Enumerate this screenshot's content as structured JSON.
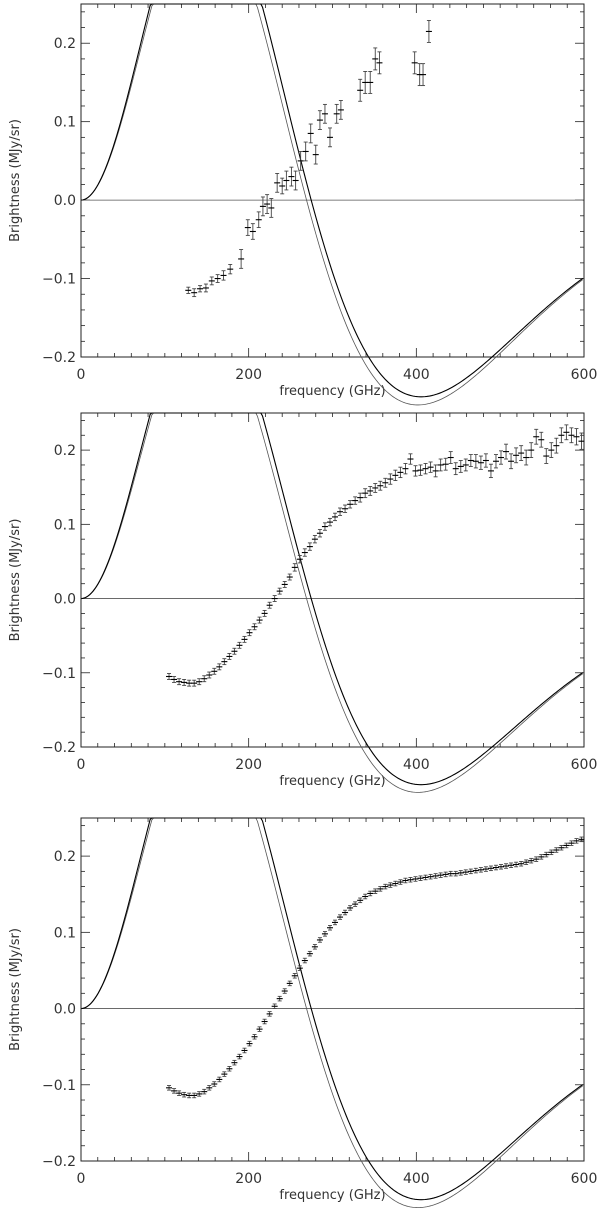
{
  "colors": {
    "curve": "#000000",
    "component": "#555555",
    "errorbar": "#444444",
    "frame": "#222222",
    "text": "#333333"
  },
  "chart_data": [
    {
      "type": "scatter",
      "xlabel": "frequency (GHz)",
      "ylabel": "Brightness (MJy/sr)",
      "xlim": [
        0,
        600
      ],
      "ylim": [
        -0.2,
        0.25
      ],
      "xticks": [
        "0",
        "200",
        "400",
        "600"
      ],
      "yticks": [
        "−0.2",
        "−0.1",
        "0.0",
        "0.1",
        "0.2"
      ],
      "grid": false,
      "series": [
        {
          "values": [
            [
              128,
              -0.115,
              0.004
            ],
            [
              135,
              -0.118,
              0.005
            ],
            [
              142,
              -0.113,
              0.004
            ],
            [
              149,
              -0.112,
              0.005
            ],
            [
              156,
              -0.103,
              0.005
            ],
            [
              163,
              -0.1,
              0.005
            ],
            [
              170,
              -0.096,
              0.006
            ],
            [
              178,
              -0.088,
              0.006
            ],
            [
              191,
              -0.075,
              0.012
            ],
            [
              199,
              -0.035,
              0.01
            ],
            [
              205,
              -0.04,
              0.01
            ],
            [
              212,
              -0.025,
              0.01
            ],
            [
              217,
              -0.008,
              0.012
            ],
            [
              222,
              -0.005,
              0.012
            ],
            [
              227,
              -0.01,
              0.012
            ],
            [
              234,
              0.022,
              0.012
            ],
            [
              240,
              0.018,
              0.01
            ],
            [
              245,
              0.025,
              0.012
            ],
            [
              251,
              0.03,
              0.012
            ],
            [
              256,
              0.025,
              0.012
            ],
            [
              262,
              0.05,
              0.012
            ],
            [
              268,
              0.062,
              0.012
            ],
            [
              274,
              0.085,
              0.012
            ],
            [
              280,
              0.058,
              0.012
            ],
            [
              285,
              0.102,
              0.012
            ],
            [
              291,
              0.11,
              0.012
            ],
            [
              297,
              0.08,
              0.012
            ],
            [
              305,
              0.11,
              0.012
            ],
            [
              310,
              0.115,
              0.012
            ],
            [
              333,
              0.14,
              0.014
            ],
            [
              339,
              0.15,
              0.014
            ],
            [
              345,
              0.15,
              0.014
            ],
            [
              351,
              0.18,
              0.014
            ],
            [
              356,
              0.175,
              0.014
            ],
            [
              398,
              0.175,
              0.014
            ],
            [
              404,
              0.16,
              0.014
            ],
            [
              408,
              0.16,
              0.014
            ],
            [
              415,
              0.215,
              0.014
            ]
          ]
        }
      ]
    },
    {
      "type": "scatter",
      "xlabel": "frequency (GHz)",
      "ylabel": "Brightness (MJy/sr)",
      "xlim": [
        0,
        600
      ],
      "ylim": [
        -0.2,
        0.25
      ],
      "xticks": [
        "0",
        "200",
        "400",
        "600"
      ],
      "yticks": [
        "−0.2",
        "−0.1",
        "0.0",
        "0.1",
        "0.2"
      ],
      "grid": false,
      "series": [
        {
          "values": [
            [
              105,
              -0.105,
              0.004
            ],
            [
              111,
              -0.109,
              0.004
            ],
            [
              117,
              -0.112,
              0.004
            ],
            [
              123,
              -0.113,
              0.004
            ],
            [
              129,
              -0.114,
              0.004
            ],
            [
              135,
              -0.114,
              0.004
            ],
            [
              141,
              -0.112,
              0.004
            ],
            [
              147,
              -0.108,
              0.004
            ],
            [
              153,
              -0.103,
              0.004
            ],
            [
              159,
              -0.098,
              0.004
            ],
            [
              165,
              -0.092,
              0.004
            ],
            [
              171,
              -0.085,
              0.004
            ],
            [
              177,
              -0.078,
              0.004
            ],
            [
              183,
              -0.071,
              0.004
            ],
            [
              189,
              -0.063,
              0.004
            ],
            [
              195,
              -0.055,
              0.004
            ],
            [
              201,
              -0.046,
              0.004
            ],
            [
              207,
              -0.038,
              0.004
            ],
            [
              213,
              -0.029,
              0.004
            ],
            [
              219,
              -0.02,
              0.004
            ],
            [
              225,
              -0.009,
              0.004
            ],
            [
              231,
              0.0,
              0.004
            ],
            [
              237,
              0.01,
              0.004
            ],
            [
              243,
              0.019,
              0.004
            ],
            [
              249,
              0.029,
              0.004
            ],
            [
              255,
              0.042,
              0.005
            ],
            [
              261,
              0.053,
              0.005
            ],
            [
              267,
              0.062,
              0.005
            ],
            [
              273,
              0.07,
              0.005
            ],
            [
              279,
              0.08,
              0.005
            ],
            [
              285,
              0.088,
              0.005
            ],
            [
              291,
              0.097,
              0.005
            ],
            [
              297,
              0.103,
              0.005
            ],
            [
              303,
              0.11,
              0.005
            ],
            [
              309,
              0.117,
              0.005
            ],
            [
              315,
              0.121,
              0.005
            ],
            [
              321,
              0.127,
              0.005
            ],
            [
              327,
              0.132,
              0.005
            ],
            [
              333,
              0.136,
              0.006
            ],
            [
              339,
              0.142,
              0.006
            ],
            [
              345,
              0.145,
              0.006
            ],
            [
              351,
              0.149,
              0.006
            ],
            [
              357,
              0.152,
              0.006
            ],
            [
              363,
              0.156,
              0.006
            ],
            [
              369,
              0.161,
              0.007
            ],
            [
              375,
              0.166,
              0.007
            ],
            [
              381,
              0.17,
              0.007
            ],
            [
              387,
              0.175,
              0.007
            ],
            [
              393,
              0.188,
              0.007
            ],
            [
              399,
              0.172,
              0.007
            ],
            [
              405,
              0.173,
              0.007
            ],
            [
              411,
              0.175,
              0.007
            ],
            [
              417,
              0.177,
              0.007
            ],
            [
              423,
              0.172,
              0.008
            ],
            [
              429,
              0.18,
              0.008
            ],
            [
              435,
              0.181,
              0.008
            ],
            [
              441,
              0.19,
              0.008
            ],
            [
              447,
              0.175,
              0.008
            ],
            [
              453,
              0.178,
              0.008
            ],
            [
              459,
              0.18,
              0.008
            ],
            [
              465,
              0.186,
              0.008
            ],
            [
              471,
              0.185,
              0.009
            ],
            [
              477,
              0.183,
              0.009
            ],
            [
              483,
              0.186,
              0.009
            ],
            [
              489,
              0.172,
              0.009
            ],
            [
              495,
              0.185,
              0.009
            ],
            [
              501,
              0.19,
              0.009
            ],
            [
              507,
              0.198,
              0.01
            ],
            [
              513,
              0.185,
              0.01
            ],
            [
              519,
              0.193,
              0.01
            ],
            [
              525,
              0.196,
              0.01
            ],
            [
              531,
              0.19,
              0.01
            ],
            [
              537,
              0.2,
              0.01
            ],
            [
              543,
              0.218,
              0.01
            ],
            [
              549,
              0.214,
              0.01
            ],
            [
              555,
              0.192,
              0.01
            ],
            [
              561,
              0.2,
              0.01
            ],
            [
              567,
              0.206,
              0.01
            ],
            [
              573,
              0.22,
              0.01
            ],
            [
              579,
              0.224,
              0.01
            ],
            [
              585,
              0.22,
              0.01
            ],
            [
              591,
              0.218,
              0.011
            ],
            [
              597,
              0.212,
              0.011
            ]
          ]
        }
      ]
    },
    {
      "type": "scatter",
      "xlabel": "frequency (GHz)",
      "ylabel": "Brightness (MJy/sr)",
      "xlim": [
        0,
        600
      ],
      "ylim": [
        -0.2,
        0.25
      ],
      "xticks": [
        "0",
        "200",
        "400",
        "600"
      ],
      "yticks": [
        "−0.2",
        "−0.1",
        "0.0",
        "0.1",
        "0.2"
      ],
      "grid": false,
      "series": [
        {
          "values": [
            [
              105,
              -0.104,
              0.003
            ],
            [
              111,
              -0.108,
              0.003
            ],
            [
              117,
              -0.111,
              0.003
            ],
            [
              123,
              -0.113,
              0.003
            ],
            [
              129,
              -0.114,
              0.003
            ],
            [
              135,
              -0.114,
              0.003
            ],
            [
              141,
              -0.112,
              0.003
            ],
            [
              147,
              -0.109,
              0.003
            ],
            [
              153,
              -0.104,
              0.003
            ],
            [
              159,
              -0.099,
              0.003
            ],
            [
              165,
              -0.093,
              0.003
            ],
            [
              171,
              -0.086,
              0.003
            ],
            [
              177,
              -0.079,
              0.003
            ],
            [
              183,
              -0.071,
              0.003
            ],
            [
              189,
              -0.063,
              0.003
            ],
            [
              195,
              -0.055,
              0.003
            ],
            [
              201,
              -0.046,
              0.003
            ],
            [
              207,
              -0.037,
              0.003
            ],
            [
              213,
              -0.027,
              0.003
            ],
            [
              219,
              -0.017,
              0.003
            ],
            [
              225,
              -0.007,
              0.003
            ],
            [
              231,
              0.003,
              0.003
            ],
            [
              237,
              0.013,
              0.003
            ],
            [
              243,
              0.023,
              0.003
            ],
            [
              249,
              0.033,
              0.003
            ],
            [
              255,
              0.043,
              0.003
            ],
            [
              261,
              0.053,
              0.003
            ],
            [
              267,
              0.063,
              0.003
            ],
            [
              273,
              0.072,
              0.003
            ],
            [
              279,
              0.081,
              0.003
            ],
            [
              285,
              0.09,
              0.003
            ],
            [
              291,
              0.098,
              0.003
            ],
            [
              297,
              0.106,
              0.003
            ],
            [
              303,
              0.113,
              0.003
            ],
            [
              309,
              0.12,
              0.003
            ],
            [
              315,
              0.126,
              0.003
            ],
            [
              321,
              0.132,
              0.003
            ],
            [
              327,
              0.137,
              0.003
            ],
            [
              333,
              0.142,
              0.003
            ],
            [
              339,
              0.147,
              0.003
            ],
            [
              345,
              0.151,
              0.003
            ],
            [
              351,
              0.154,
              0.003
            ],
            [
              357,
              0.157,
              0.003
            ],
            [
              363,
              0.16,
              0.003
            ],
            [
              369,
              0.162,
              0.003
            ],
            [
              375,
              0.164,
              0.003
            ],
            [
              381,
              0.166,
              0.003
            ],
            [
              387,
              0.168,
              0.003
            ],
            [
              393,
              0.169,
              0.003
            ],
            [
              399,
              0.17,
              0.003
            ],
            [
              405,
              0.171,
              0.003
            ],
            [
              411,
              0.172,
              0.003
            ],
            [
              417,
              0.173,
              0.003
            ],
            [
              423,
              0.174,
              0.003
            ],
            [
              429,
              0.175,
              0.003
            ],
            [
              435,
              0.176,
              0.003
            ],
            [
              441,
              0.177,
              0.003
            ],
            [
              447,
              0.177,
              0.003
            ],
            [
              453,
              0.178,
              0.003
            ],
            [
              459,
              0.179,
              0.003
            ],
            [
              465,
              0.18,
              0.003
            ],
            [
              471,
              0.181,
              0.003
            ],
            [
              477,
              0.182,
              0.003
            ],
            [
              483,
              0.183,
              0.003
            ],
            [
              489,
              0.184,
              0.003
            ],
            [
              495,
              0.185,
              0.003
            ],
            [
              501,
              0.186,
              0.003
            ],
            [
              507,
              0.187,
              0.003
            ],
            [
              513,
              0.188,
              0.003
            ],
            [
              519,
              0.189,
              0.003
            ],
            [
              525,
              0.19,
              0.003
            ],
            [
              531,
              0.192,
              0.003
            ],
            [
              537,
              0.194,
              0.003
            ],
            [
              543,
              0.196,
              0.003
            ],
            [
              549,
              0.199,
              0.003
            ],
            [
              555,
              0.202,
              0.003
            ],
            [
              561,
              0.205,
              0.003
            ],
            [
              567,
              0.208,
              0.003
            ],
            [
              573,
              0.211,
              0.003
            ],
            [
              579,
              0.214,
              0.003
            ],
            [
              585,
              0.217,
              0.003
            ],
            [
              591,
              0.22,
              0.003
            ],
            [
              597,
              0.222,
              0.003
            ]
          ]
        }
      ]
    }
  ]
}
